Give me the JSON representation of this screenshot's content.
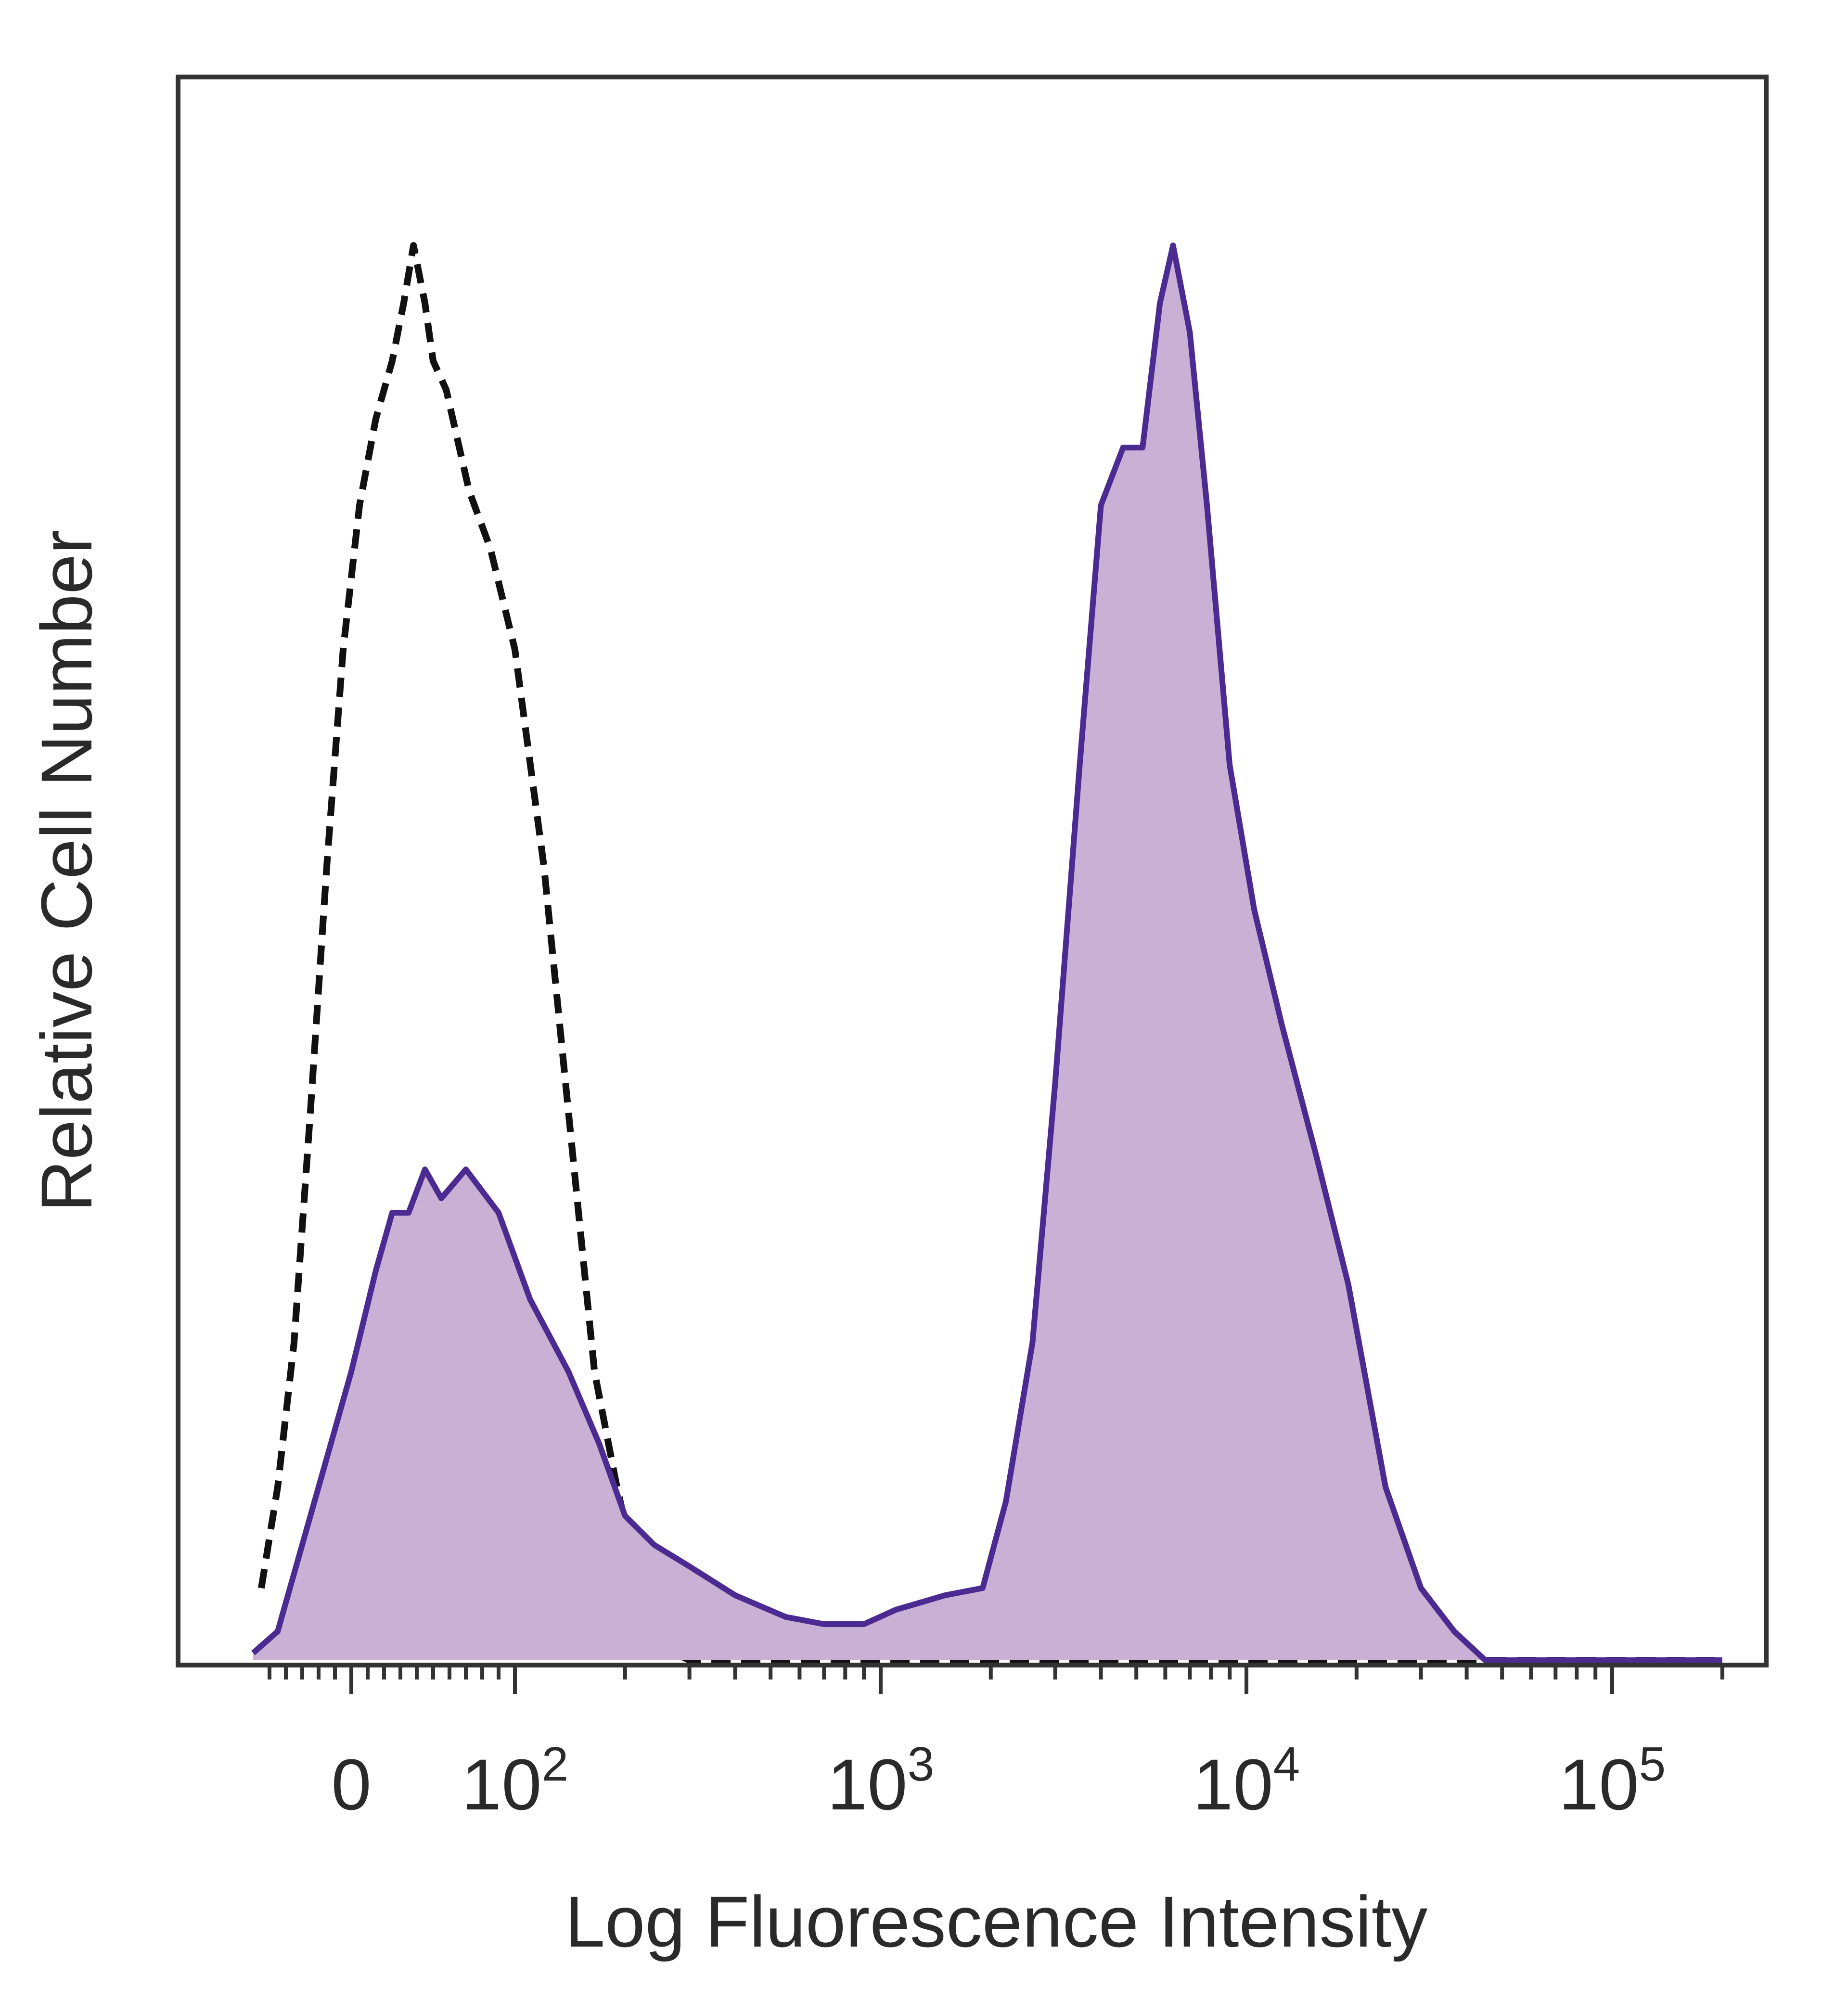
{
  "chart_data": {
    "type": "area",
    "title": "",
    "xlabel": "Log Fluorescence Intensity",
    "ylabel": "Relative Cell Number",
    "x_scale": "biexponential",
    "xlim": [
      -60,
      200000
    ],
    "ylim": [
      0,
      100
    ],
    "x_ticks": [
      {
        "value": 0,
        "label": "0"
      },
      {
        "value": 100,
        "label": "10",
        "sup": "2"
      },
      {
        "value": 1000,
        "label": "10",
        "sup": "3"
      },
      {
        "value": 10000,
        "label": "10",
        "sup": "4"
      },
      {
        "value": 100000,
        "label": "10",
        "sup": "5"
      }
    ],
    "grid": false,
    "legend": "none",
    "series": [
      {
        "style": "dashed-outline",
        "color": "#111111",
        "points": [
          [
            -55,
            5
          ],
          [
            -45,
            12
          ],
          [
            -35,
            22
          ],
          [
            -25,
            38
          ],
          [
            -15,
            55
          ],
          [
            -5,
            70
          ],
          [
            5,
            80
          ],
          [
            15,
            86
          ],
          [
            25,
            90
          ],
          [
            32,
            94
          ],
          [
            38,
            98
          ],
          [
            45,
            94
          ],
          [
            50,
            90
          ],
          [
            58,
            88
          ],
          [
            66,
            84
          ],
          [
            72,
            81
          ],
          [
            85,
            77
          ],
          [
            100,
            70
          ],
          [
            120,
            55
          ],
          [
            140,
            38
          ],
          [
            165,
            20
          ],
          [
            190,
            12
          ],
          [
            220,
            5
          ],
          [
            250,
            1
          ],
          [
            300,
            0
          ],
          [
            200000,
            0
          ]
        ]
      },
      {
        "style": "filled",
        "color": "#4b2a91",
        "fill": "#c9b0d4",
        "points": [
          [
            -60,
            0.5
          ],
          [
            -45,
            2
          ],
          [
            -30,
            8
          ],
          [
            -15,
            14
          ],
          [
            0,
            20
          ],
          [
            15,
            27
          ],
          [
            25,
            31
          ],
          [
            35,
            31
          ],
          [
            45,
            34
          ],
          [
            55,
            32
          ],
          [
            70,
            34
          ],
          [
            90,
            31
          ],
          [
            110,
            25
          ],
          [
            140,
            20
          ],
          [
            170,
            15
          ],
          [
            200,
            10
          ],
          [
            240,
            8
          ],
          [
            300,
            6.5
          ],
          [
            400,
            4.5
          ],
          [
            550,
            3
          ],
          [
            700,
            2.5
          ],
          [
            900,
            2.5
          ],
          [
            1100,
            3.5
          ],
          [
            1500,
            4.5
          ],
          [
            1900,
            5
          ],
          [
            2200,
            11
          ],
          [
            2600,
            22
          ],
          [
            3000,
            40
          ],
          [
            3500,
            62
          ],
          [
            4000,
            80
          ],
          [
            4600,
            84
          ],
          [
            5200,
            84
          ],
          [
            5800,
            94
          ],
          [
            6300,
            98
          ],
          [
            7000,
            92
          ],
          [
            7800,
            80
          ],
          [
            9000,
            62
          ],
          [
            10500,
            52
          ],
          [
            12500,
            44
          ],
          [
            15500,
            35
          ],
          [
            19000,
            26
          ],
          [
            24000,
            12
          ],
          [
            30000,
            5
          ],
          [
            37000,
            2
          ],
          [
            45000,
            0
          ],
          [
            200000,
            0
          ]
        ]
      }
    ]
  }
}
